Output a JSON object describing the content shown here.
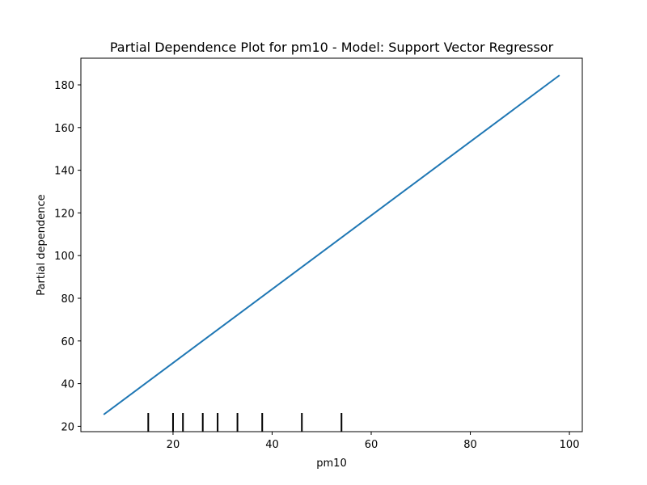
{
  "chart_data": {
    "type": "line",
    "title": "Partial Dependence Plot for pm10 - Model: Support Vector Regressor",
    "xlabel": "pm10",
    "ylabel": "Partial dependence",
    "xlim": [
      1.4,
      102.6
    ],
    "ylim": [
      17.5,
      192.5
    ],
    "xticks": [
      20,
      40,
      60,
      80,
      100
    ],
    "yticks": [
      20,
      40,
      60,
      80,
      100,
      120,
      140,
      160,
      180
    ],
    "grid": false,
    "legend": "none",
    "series": [
      {
        "x": [
          6,
          98
        ],
        "y": [
          25.5,
          184.5
        ],
        "color": "#1f77b4"
      }
    ],
    "rug": {
      "x": [
        15,
        20,
        22,
        26,
        29,
        33,
        38,
        46,
        54
      ],
      "color": "#000000"
    }
  }
}
